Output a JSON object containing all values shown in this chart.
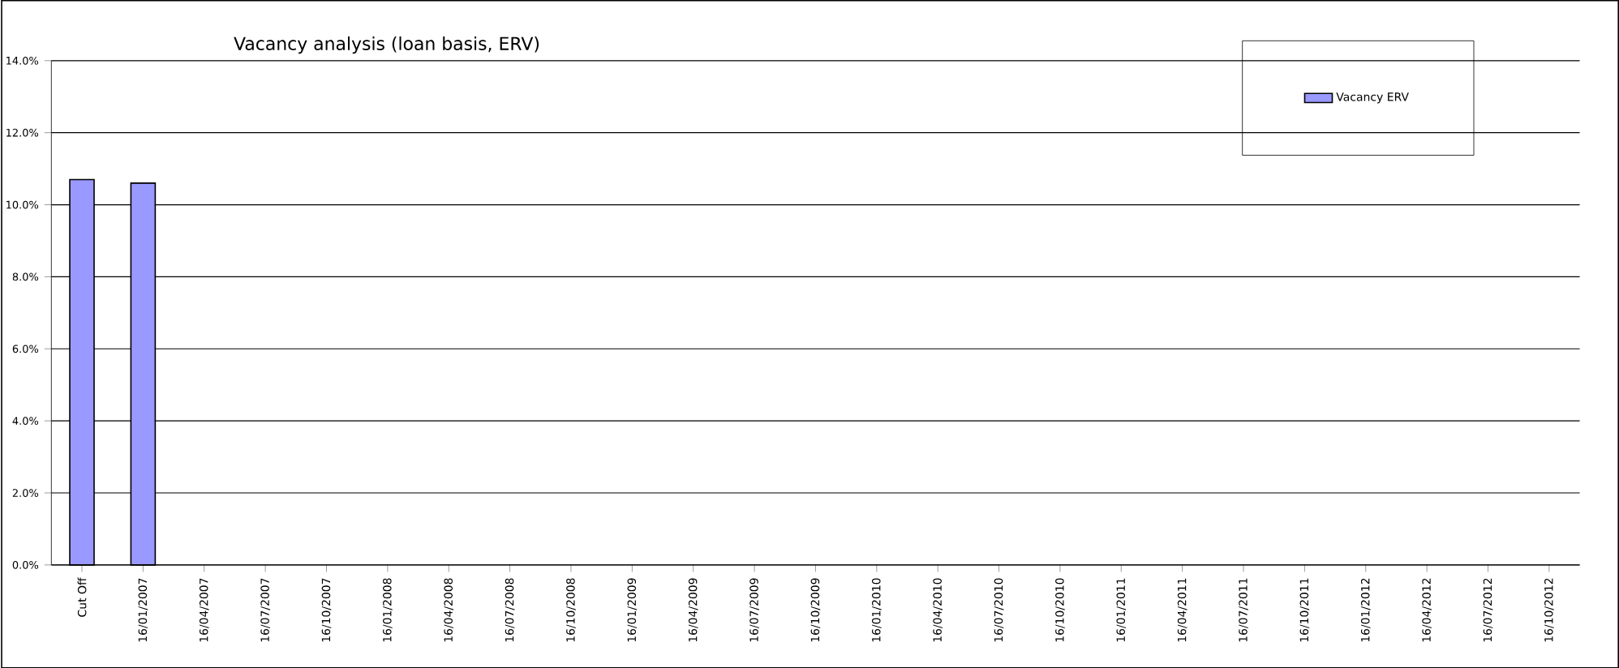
{
  "chart_data": {
    "type": "bar",
    "title": "Vacancy analysis (loan basis, ERV)",
    "categories": [
      "Cut Off",
      "16/01/2007",
      "16/04/2007",
      "16/07/2007",
      "16/10/2007",
      "16/01/2008",
      "16/04/2008",
      "16/07/2008",
      "16/10/2008",
      "16/01/2009",
      "16/04/2009",
      "16/07/2009",
      "16/10/2009",
      "16/01/2010",
      "16/04/2010",
      "16/07/2010",
      "16/10/2010",
      "16/01/2011",
      "16/04/2011",
      "16/07/2011",
      "16/10/2011",
      "16/01/2012",
      "16/04/2012",
      "16/07/2012",
      "16/10/2012"
    ],
    "series": [
      {
        "name": "Vacancy ERV",
        "color": "#9999ff",
        "values": [
          10.7,
          10.6,
          null,
          null,
          null,
          null,
          null,
          null,
          null,
          null,
          null,
          null,
          null,
          null,
          null,
          null,
          null,
          null,
          null,
          null,
          null,
          null,
          null,
          null,
          null
        ]
      }
    ],
    "ylim": [
      0,
      14
    ],
    "yticks": [
      {
        "value": 0,
        "label": "0.0%"
      },
      {
        "value": 2,
        "label": "2.0%"
      },
      {
        "value": 4,
        "label": "4.0%"
      },
      {
        "value": 6,
        "label": "6.0%"
      },
      {
        "value": 8,
        "label": "8.0%"
      },
      {
        "value": 10,
        "label": "10.0%"
      },
      {
        "value": 12,
        "label": "12.0%"
      },
      {
        "value": 14,
        "label": "14.0%"
      }
    ],
    "grid": "y",
    "legend": "top right"
  }
}
